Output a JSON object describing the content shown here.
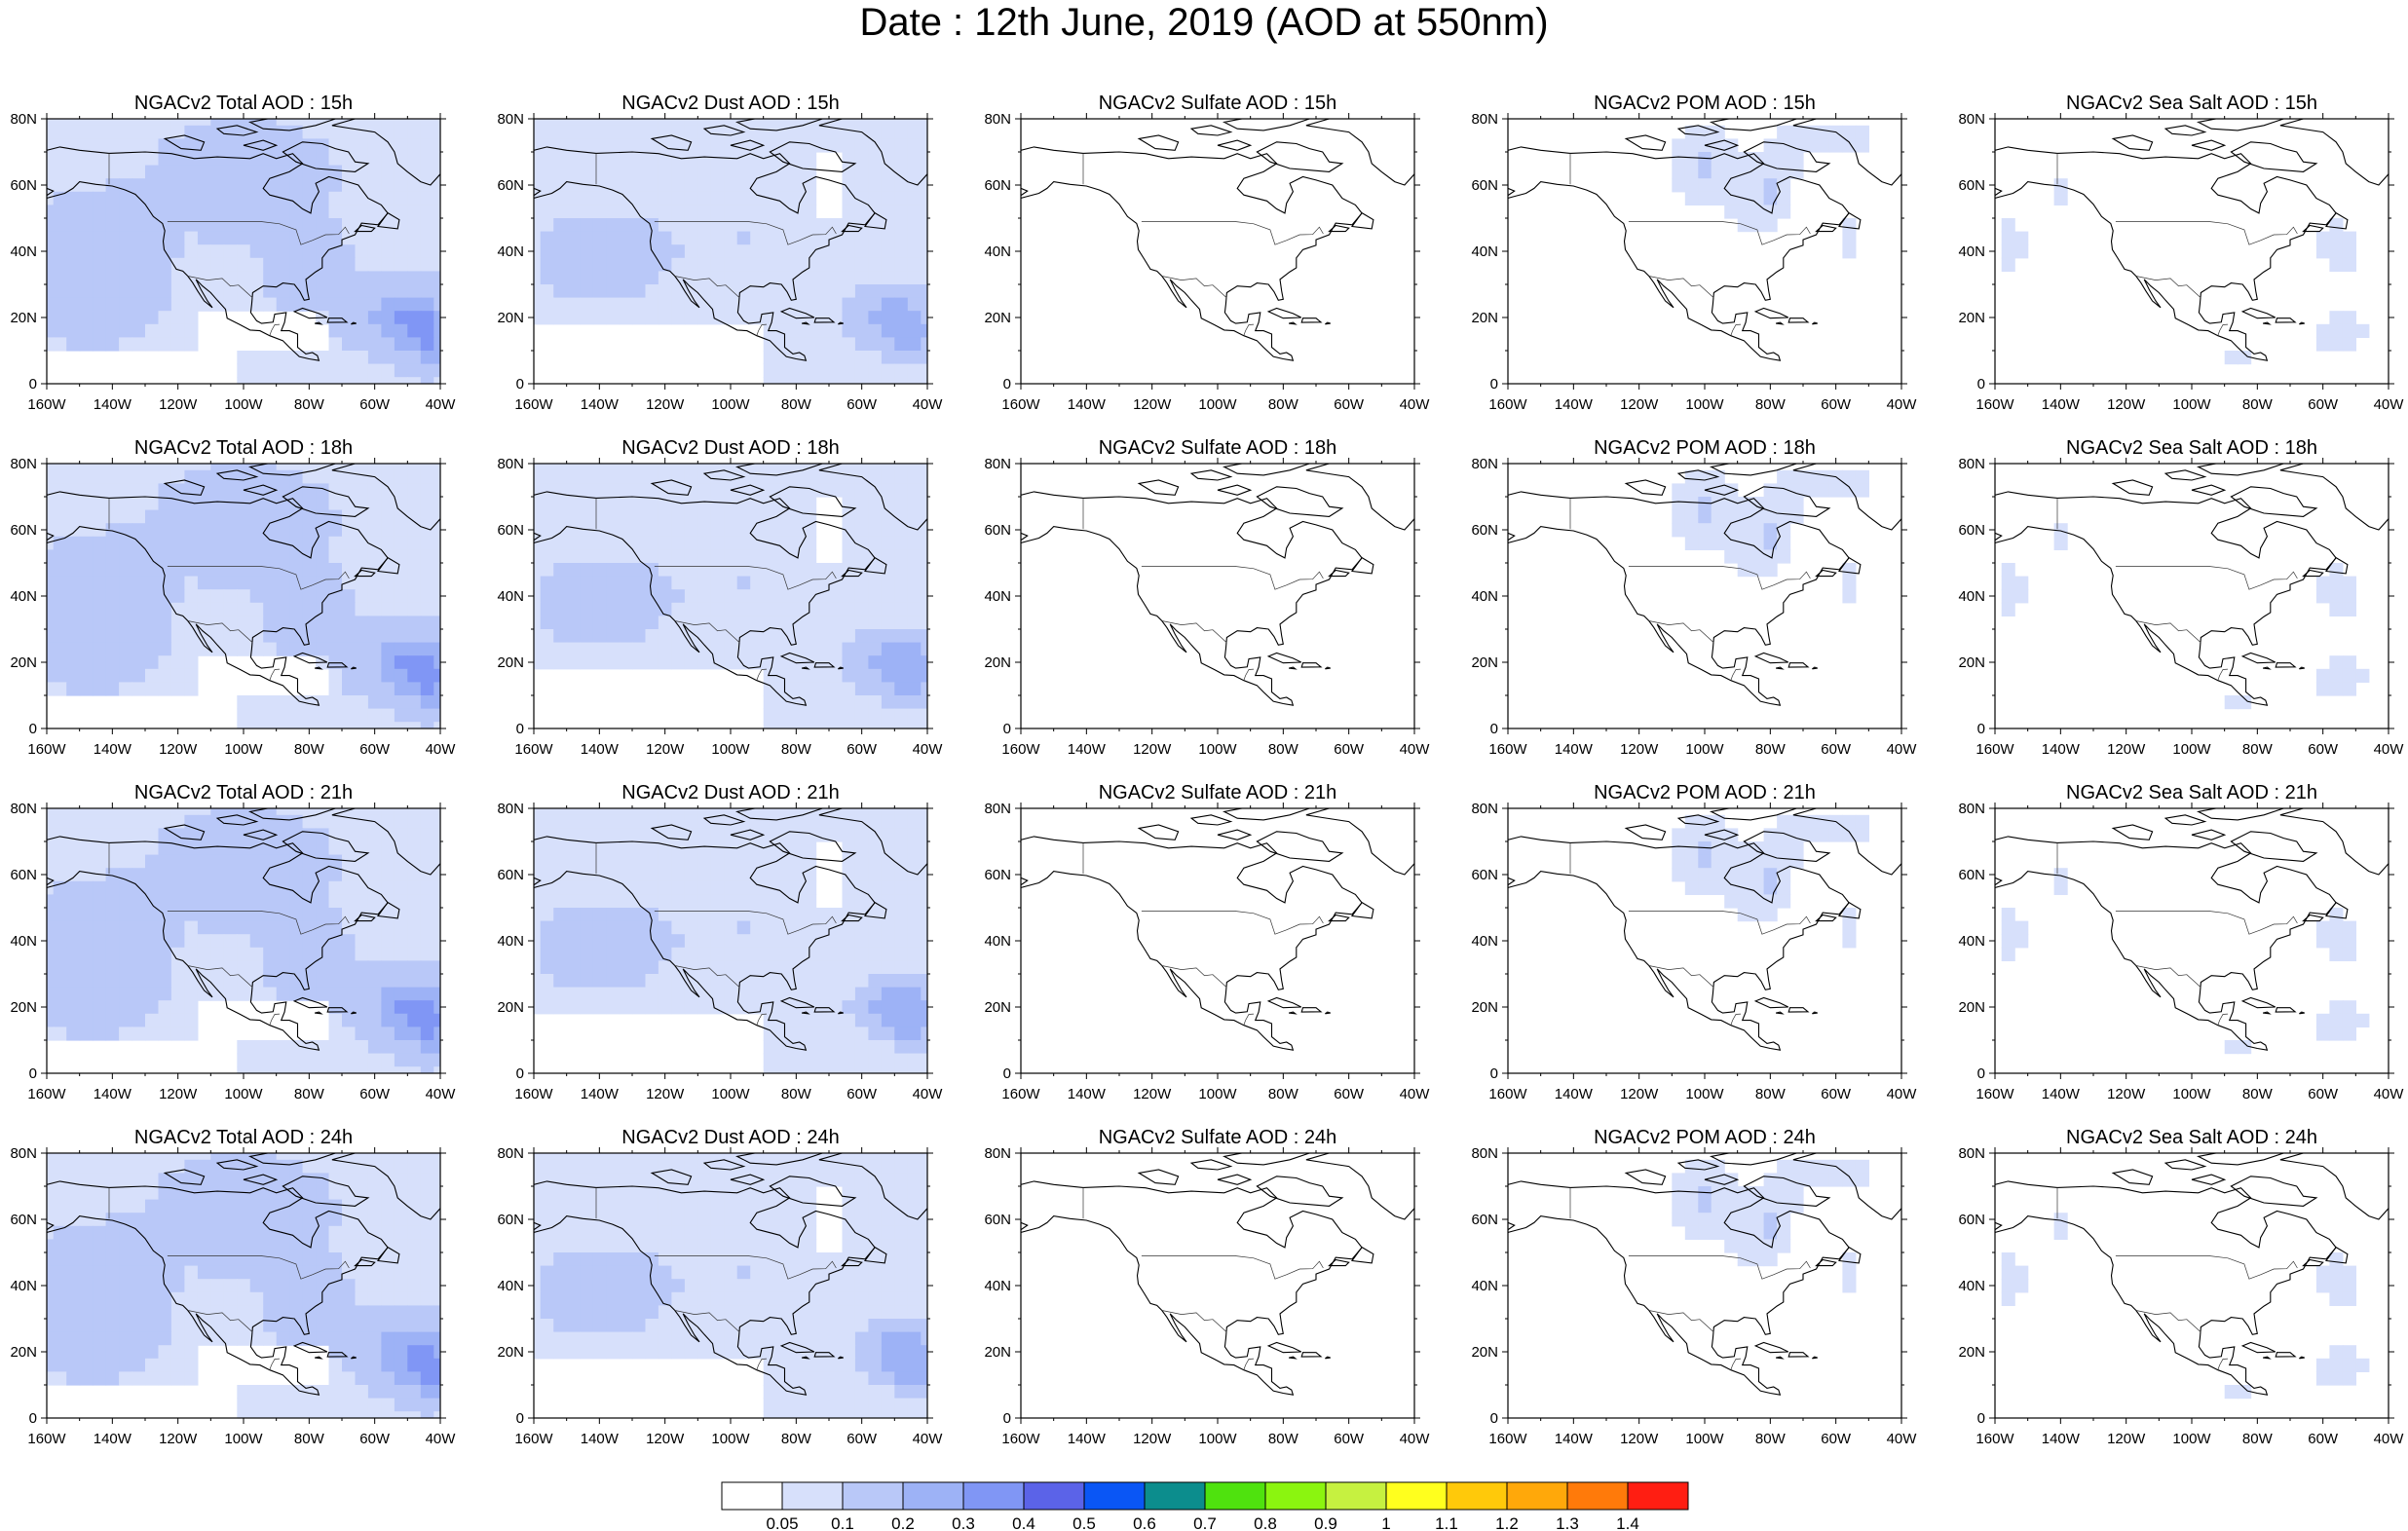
{
  "title": "Date : 12th June, 2019 (AOD at 550nm)",
  "grid": {
    "rows": [
      "15h",
      "18h",
      "21h",
      "24h"
    ],
    "panel_titles": [
      [
        "NGACv2 Total AOD : 15h",
        "NGACv2 Dust AOD : 15h",
        "NGACv2 Sulfate AOD : 15h",
        "NGACv2 POM AOD : 15h",
        "NGACv2 Sea Salt AOD : 15h"
      ],
      [
        "NGACv2 Total AOD : 18h",
        "NGACv2 Dust AOD : 18h",
        "NGACv2 Sulfate AOD : 18h",
        "NGACv2 POM AOD : 18h",
        "NGACv2 Sea Salt AOD : 18h"
      ],
      [
        "NGACv2 Total AOD : 21h",
        "NGACv2 Dust AOD : 21h",
        "NGACv2 Sulfate AOD : 21h",
        "NGACv2 POM AOD : 21h",
        "NGACv2 Sea Salt AOD : 21h"
      ],
      [
        "NGACv2 Total AOD : 24h",
        "NGACv2 Dust AOD : 24h",
        "NGACv2 Sulfate AOD : 24h",
        "NGACv2 POM AOD : 24h",
        "NGACv2 Sea Salt  AOD : 24h"
      ]
    ],
    "columns": [
      "Total",
      "Dust",
      "Sulfate",
      "POM",
      "Sea Salt"
    ]
  },
  "map_axes": {
    "lon_ticks": [
      "160W",
      "140W",
      "120W",
      "100W",
      "80W",
      "60W",
      "40W"
    ],
    "lat_ticks": [
      "80N",
      "60N",
      "40N",
      "20N",
      "0"
    ],
    "lon_range": [
      -160,
      -40
    ],
    "lat_range": [
      0,
      80
    ]
  },
  "colorbar": {
    "labels": [
      "0.05",
      "0.1",
      "0.2",
      "0.3",
      "0.4",
      "0.5",
      "0.6",
      "0.7",
      "0.8",
      "0.9",
      "1",
      "1.1",
      "1.2",
      "1.3",
      "1.4"
    ],
    "colors": [
      "#ffffff",
      "#d7e0fb",
      "#b9c8f8",
      "#9db2f6",
      "#8096f5",
      "#5b63e8",
      "#0a56f5",
      "#0c8d8d",
      "#4fe20e",
      "#8bf50f",
      "#c6f140",
      "#ffff1e",
      "#ffc90a",
      "#ffa80a",
      "#ff7a0a",
      "#ff1e12"
    ]
  },
  "chart_data": {
    "type": "heatmap",
    "title": "Date : 12th June, 2019 (AOD at 550nm)",
    "variable": "AOD at 550nm",
    "date": "12th June, 2019",
    "times": [
      "15h",
      "18h",
      "21h",
      "24h"
    ],
    "species": [
      "Total",
      "Dust",
      "Sulfate",
      "POM",
      "Sea Salt"
    ],
    "typical_levels": {
      "Total": {
        "background": 0.1,
        "pacific": 0.15,
        "saharan_plume_max": 0.5
      },
      "Dust": {
        "background": 0.1,
        "pacific": 0.15,
        "saharan_plume_max": 0.4
      },
      "Sulfate": {
        "background": 0.0
      },
      "POM": {
        "canada_max": 0.2,
        "background": 0.0
      },
      "Sea Salt": {
        "background": 0.0,
        "patches": 0.1
      }
    },
    "color_levels": [
      0.05,
      0.1,
      0.2,
      0.3,
      0.4,
      0.5,
      0.6,
      0.7,
      0.8,
      0.9,
      1,
      1.1,
      1.2,
      1.3,
      1.4
    ]
  }
}
